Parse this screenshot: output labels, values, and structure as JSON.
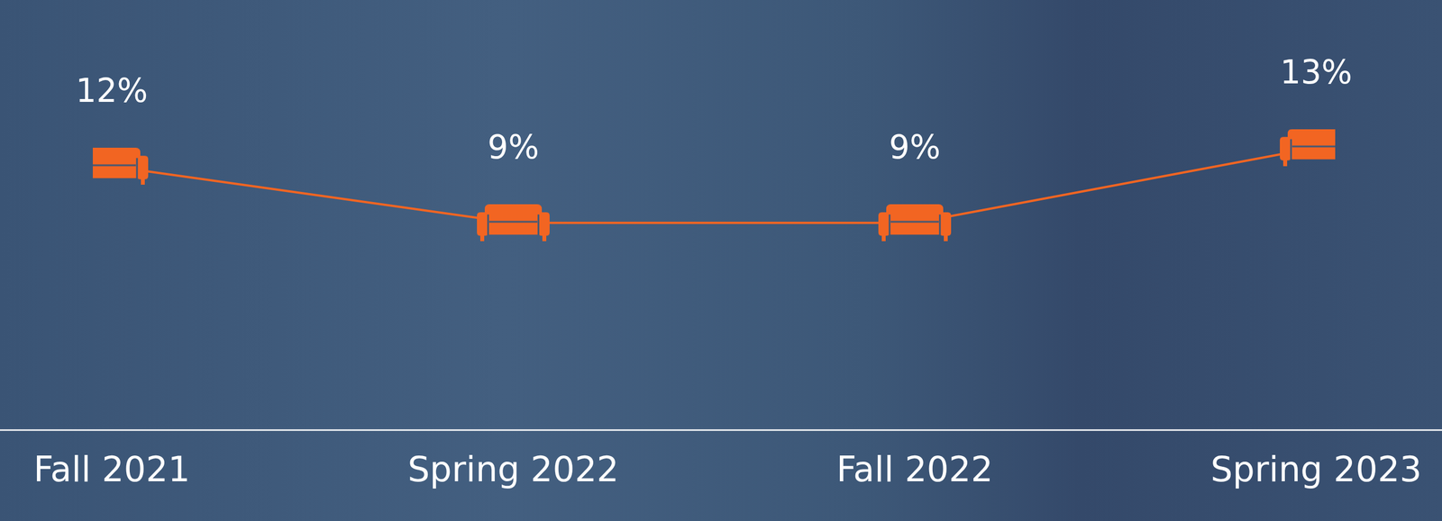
{
  "chart_data": {
    "type": "line",
    "categories": [
      "Fall 2021",
      "Spring 2022",
      "Fall 2022",
      "Spring 2023"
    ],
    "values": [
      12,
      9,
      9,
      13
    ],
    "value_labels": [
      "12%",
      "9%",
      "9%",
      "13%"
    ],
    "color": "#f26522",
    "marker": "sofa",
    "data_labels": true,
    "tick_labels": "x",
    "grid": false
  }
}
